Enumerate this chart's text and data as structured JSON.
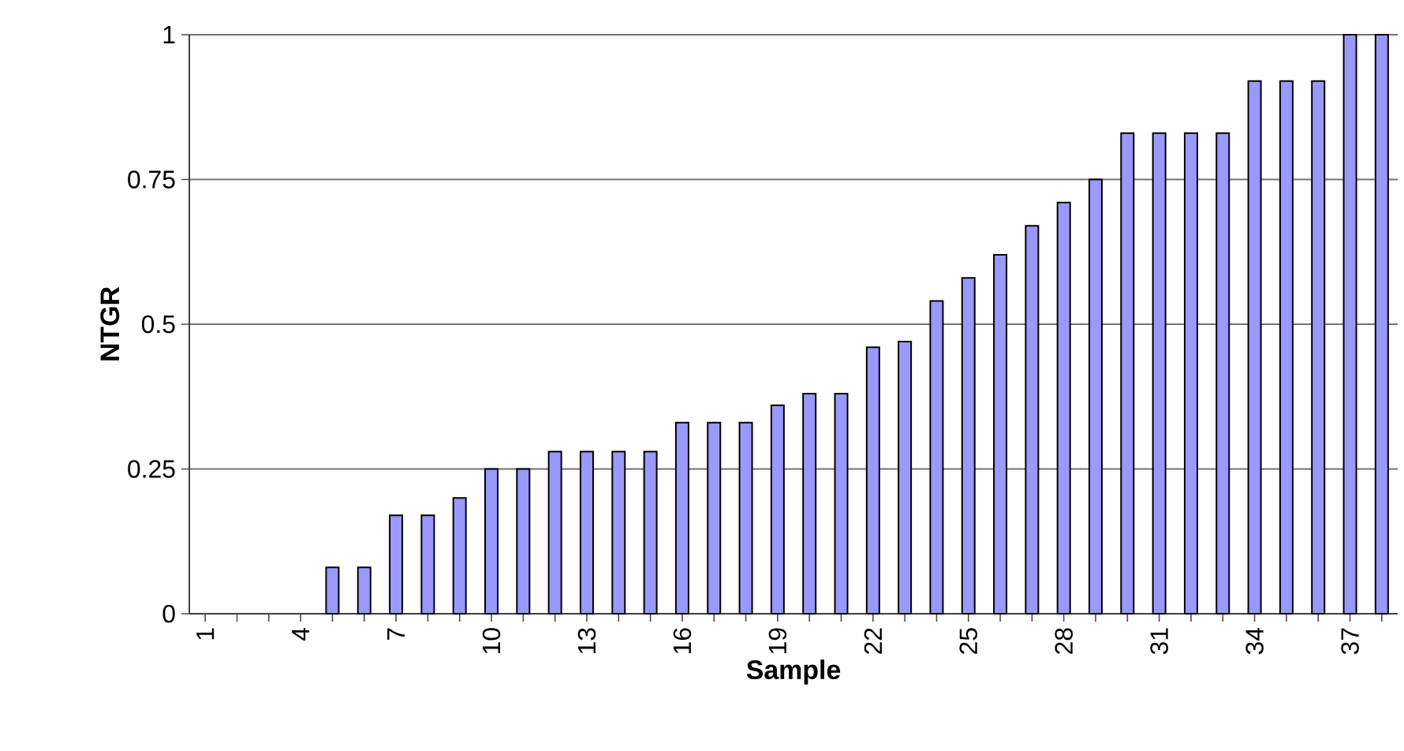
{
  "chart_data": {
    "type": "bar",
    "xlabel": "Sample",
    "ylabel": "NTGR",
    "categories": [
      "1",
      null,
      null,
      "4",
      null,
      null,
      "7",
      null,
      null,
      "10",
      null,
      null,
      "13",
      null,
      null,
      "16",
      null,
      null,
      "19",
      null,
      null,
      "22",
      null,
      null,
      "25",
      null,
      null,
      "28",
      null,
      null,
      "31",
      null,
      null,
      "34",
      null,
      null,
      "37",
      null
    ],
    "values": [
      0,
      0,
      0,
      0,
      0.08,
      0.08,
      0.17,
      0.17,
      0.2,
      0.25,
      0.25,
      0.28,
      0.28,
      0.28,
      0.28,
      0.33,
      0.33,
      0.33,
      0.36,
      0.38,
      0.38,
      0.46,
      0.47,
      0.54,
      0.58,
      0.62,
      0.67,
      0.71,
      0.75,
      0.83,
      0.83,
      0.83,
      0.83,
      0.92,
      0.92,
      0.92,
      1,
      1
    ],
    "color": "#9999ff",
    "ylim": [
      0,
      1
    ],
    "yticks": [
      0,
      0.25,
      0.5,
      0.75,
      1
    ],
    "grid": "y"
  }
}
